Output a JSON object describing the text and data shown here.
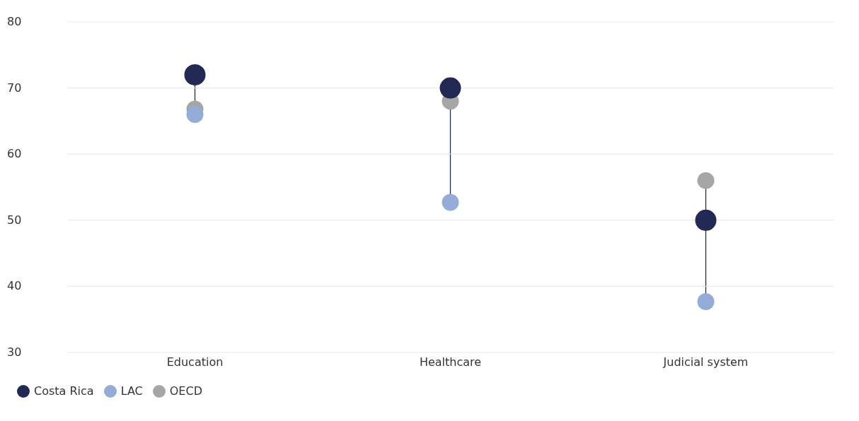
{
  "chart_data": {
    "type": "scatter",
    "categories": [
      "Education",
      "Healthcare",
      "Judicial system"
    ],
    "series": [
      {
        "name": "Costa Rica",
        "color": "#222a54",
        "values": [
          72,
          70,
          50
        ]
      },
      {
        "name": "LAC",
        "color": "#95acd6",
        "values": [
          66,
          52.7,
          37.7
        ]
      },
      {
        "name": "OECD",
        "color": "#a6a6a6",
        "values": [
          66.8,
          68,
          56
        ]
      }
    ],
    "ylim": [
      30,
      80
    ],
    "yticks": [
      30,
      40,
      50,
      60,
      70,
      80
    ],
    "grid": "y",
    "legend": "bottom left",
    "marker": "circle"
  }
}
